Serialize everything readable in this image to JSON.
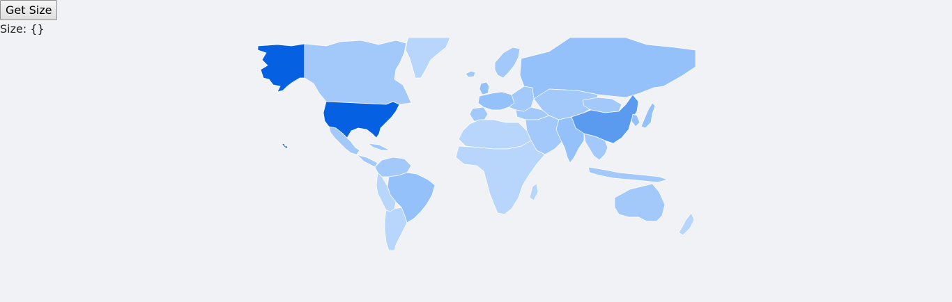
{
  "controls": {
    "button_label": "Get Size",
    "size_label": "Size:",
    "size_value": "{}"
  },
  "palette": {
    "level_1": "#b8d6fc",
    "level_2": "#a3c9fb",
    "level_3": "#94c1fa",
    "level_4": "#5a9bf0",
    "level_5": "#0660e2",
    "background": "#f1f2f6"
  },
  "regions": [
    {
      "name": "alaska",
      "level": 5
    },
    {
      "name": "canada",
      "level": 2
    },
    {
      "name": "greenland",
      "level": 1
    },
    {
      "name": "united-states",
      "level": 5
    },
    {
      "name": "hawaii",
      "level": 5
    },
    {
      "name": "mexico",
      "level": 2
    },
    {
      "name": "central-america",
      "level": 2
    },
    {
      "name": "caribbean",
      "level": 2
    },
    {
      "name": "colombia-venezuela",
      "level": 2
    },
    {
      "name": "brazil",
      "level": 3
    },
    {
      "name": "andean-south-america",
      "level": 1
    },
    {
      "name": "southern-cone",
      "level": 1
    },
    {
      "name": "iceland",
      "level": 2
    },
    {
      "name": "united-kingdom",
      "level": 3
    },
    {
      "name": "scandinavia",
      "level": 2
    },
    {
      "name": "western-europe",
      "level": 3
    },
    {
      "name": "iberia",
      "level": 2
    },
    {
      "name": "eastern-europe",
      "level": 2
    },
    {
      "name": "russia",
      "level": 3
    },
    {
      "name": "turkey-caucasus",
      "level": 2
    },
    {
      "name": "middle-east",
      "level": 2
    },
    {
      "name": "north-africa",
      "level": 1
    },
    {
      "name": "sub-saharan-africa",
      "level": 1
    },
    {
      "name": "madagascar",
      "level": 1
    },
    {
      "name": "central-asia",
      "level": 2
    },
    {
      "name": "mongolia",
      "level": 2
    },
    {
      "name": "china",
      "level": 4
    },
    {
      "name": "korea",
      "level": 3
    },
    {
      "name": "japan",
      "level": 3
    },
    {
      "name": "india",
      "level": 3
    },
    {
      "name": "southeast-asia",
      "level": 2
    },
    {
      "name": "indonesia",
      "level": 2
    },
    {
      "name": "australia",
      "level": 2
    },
    {
      "name": "new-zealand",
      "level": 1
    }
  ]
}
